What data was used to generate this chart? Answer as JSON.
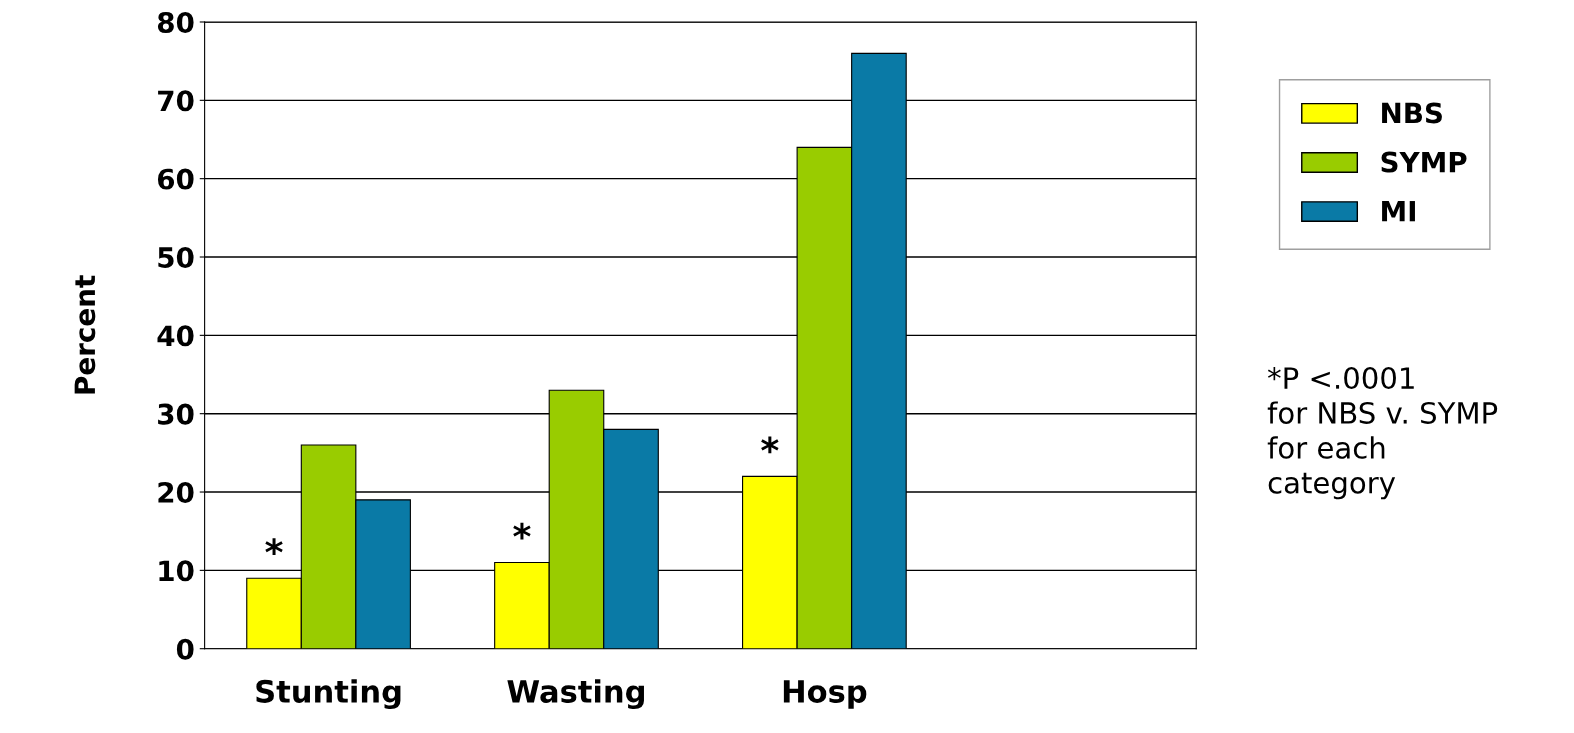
{
  "chart_data": {
    "type": "bar",
    "ylabel": "Percent",
    "categories": [
      "Stunting",
      "Wasting",
      "Hosp",
      null
    ],
    "series": [
      {
        "name": "NBS",
        "color": "#ffff00",
        "values": [
          9,
          11,
          22,
          null
        ]
      },
      {
        "name": "SYMP",
        "color": "#99cc00",
        "values": [
          26,
          33,
          64,
          null
        ]
      },
      {
        "name": "MI",
        "color": "#0a7aa6",
        "values": [
          19,
          28,
          76,
          null
        ]
      }
    ],
    "ylim": [
      0,
      80
    ],
    "yticks": [
      0,
      10,
      20,
      30,
      40,
      50,
      60,
      70,
      80
    ],
    "grid": "y",
    "legend": "top right",
    "annotations": [
      "*",
      "*",
      "*",
      "*P <.0001\nfor NBS v. SYMP\nfor each\ncategory"
    ]
  }
}
